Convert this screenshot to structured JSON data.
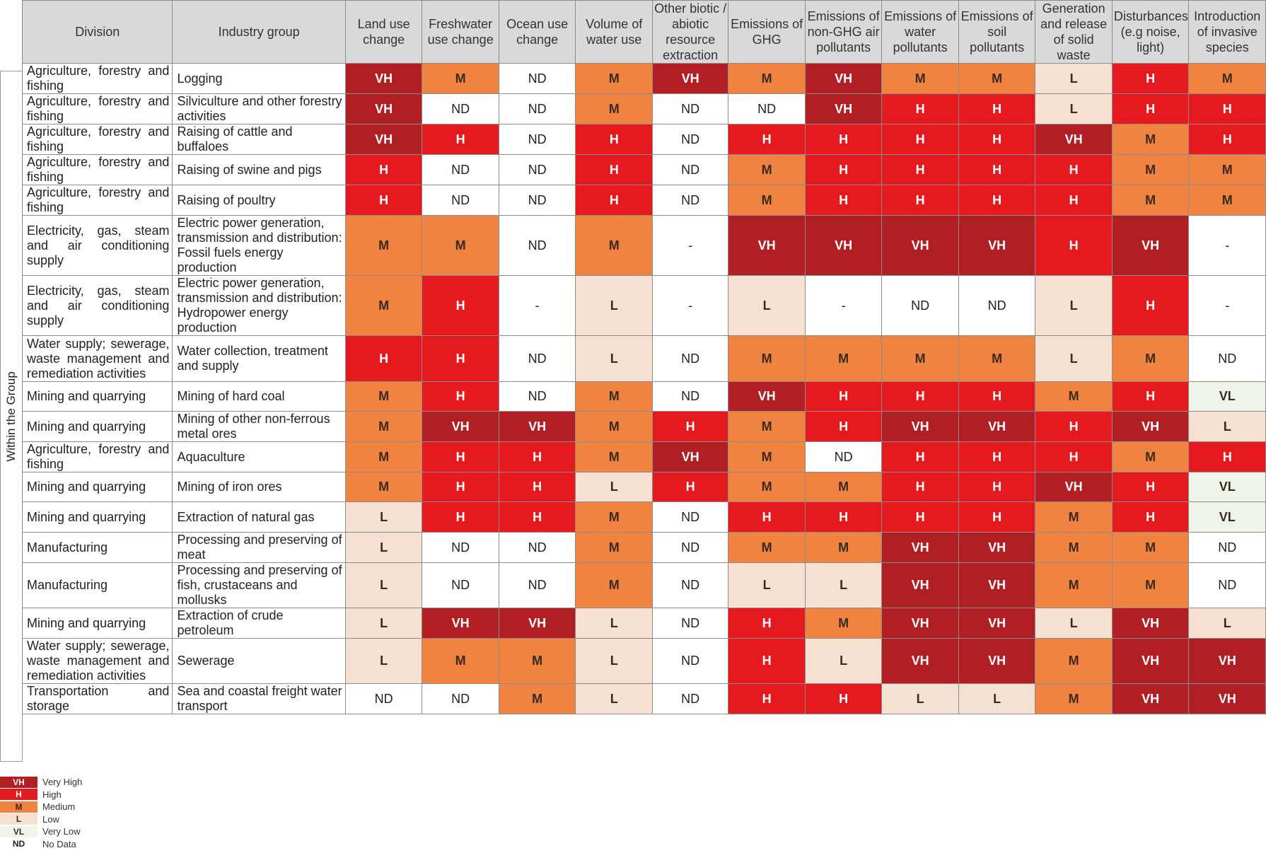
{
  "side_label": "Within the Group",
  "chart_data": {
    "type": "heatmap",
    "columns": [
      "Division",
      "Industry group",
      "Land use change",
      "Freshwater use change",
      "Ocean use change",
      "Volume of water use",
      "Other biotic / abiotic resource extraction",
      "Emissions of GHG",
      "Emissions of non-GHG air pollutants",
      "Emissions of water pollutants",
      "Emissions of soil pollutants",
      "Generation and release of solid waste",
      "Disturbances (e.g noise, light)",
      "Introduction of invasive species"
    ],
    "rows": [
      {
        "division": "Agriculture, forestry and fishing",
        "industry": "Logging",
        "values": [
          "VH",
          "M",
          "ND",
          "M",
          "VH",
          "M",
          "VH",
          "M",
          "M",
          "L",
          "H",
          "M"
        ]
      },
      {
        "division": "Agriculture, forestry and fishing",
        "industry": "Silviculture and other forestry activities",
        "values": [
          "VH",
          "ND",
          "ND",
          "M",
          "ND",
          "ND",
          "VH",
          "H",
          "H",
          "L",
          "H",
          "H"
        ]
      },
      {
        "division": "Agriculture, forestry and fishing",
        "industry": "Raising of cattle and buffaloes",
        "values": [
          "VH",
          "H",
          "ND",
          "H",
          "ND",
          "H",
          "H",
          "H",
          "H",
          "VH",
          "M",
          "H"
        ]
      },
      {
        "division": "Agriculture, forestry and fishing",
        "industry": "Raising of swine and pigs",
        "values": [
          "H",
          "ND",
          "ND",
          "H",
          "ND",
          "M",
          "H",
          "H",
          "H",
          "H",
          "M",
          "M"
        ]
      },
      {
        "division": "Agriculture, forestry and fishing",
        "industry": "Raising of poultry",
        "values": [
          "H",
          "ND",
          "ND",
          "H",
          "ND",
          "M",
          "H",
          "H",
          "H",
          "H",
          "M",
          "M"
        ]
      },
      {
        "division": "Electricity, gas, steam and air conditioning supply",
        "industry": "Electric power generation, transmission and distribution: Fossil fuels energy production",
        "values": [
          "M",
          "M",
          "ND",
          "M",
          "-",
          "VH",
          "VH",
          "VH",
          "VH",
          "H",
          "VH",
          "-"
        ]
      },
      {
        "division": "Electricity, gas, steam and air conditioning supply",
        "industry": "Electric power generation, transmission and distribution: Hydropower energy production",
        "values": [
          "M",
          "H",
          "-",
          "L",
          "-",
          "L",
          "-",
          "ND",
          "ND",
          "L",
          "H",
          "-"
        ]
      },
      {
        "division": "Water supply; sewerage, waste management and remediation activities",
        "industry": "Water collection, treatment and supply",
        "values": [
          "H",
          "H",
          "ND",
          "L",
          "ND",
          "M",
          "M",
          "M",
          "M",
          "L",
          "M",
          "ND"
        ]
      },
      {
        "division": "Mining and quarrying",
        "industry": "Mining of hard coal",
        "values": [
          "M",
          "H",
          "ND",
          "M",
          "ND",
          "VH",
          "H",
          "H",
          "H",
          "M",
          "H",
          "VL"
        ]
      },
      {
        "division": "Mining and quarrying",
        "industry": "Mining of other non-ferrous metal ores",
        "values": [
          "M",
          "VH",
          "VH",
          "M",
          "H",
          "M",
          "H",
          "VH",
          "VH",
          "H",
          "VH",
          "L"
        ]
      },
      {
        "division": "Agriculture, forestry and fishing",
        "industry": "Aquaculture",
        "values": [
          "M",
          "H",
          "H",
          "M",
          "VH",
          "M",
          "ND",
          "H",
          "H",
          "H",
          "M",
          "H"
        ]
      },
      {
        "division": "Mining and quarrying",
        "industry": "Mining of iron ores",
        "values": [
          "M",
          "H",
          "H",
          "L",
          "H",
          "M",
          "M",
          "H",
          "H",
          "VH",
          "H",
          "VL"
        ]
      },
      {
        "division": "Mining and quarrying",
        "industry": "Extraction of natural gas",
        "values": [
          "L",
          "H",
          "H",
          "M",
          "ND",
          "H",
          "H",
          "H",
          "H",
          "M",
          "H",
          "VL"
        ]
      },
      {
        "division": "Manufacturing",
        "industry": "Processing and preserving of meat",
        "values": [
          "L",
          "ND",
          "ND",
          "M",
          "ND",
          "M",
          "M",
          "VH",
          "VH",
          "M",
          "M",
          "ND"
        ]
      },
      {
        "division": "Manufacturing",
        "industry": "Processing and preserving of fish, crustaceans and mollusks",
        "values": [
          "L",
          "ND",
          "ND",
          "M",
          "ND",
          "L",
          "L",
          "VH",
          "VH",
          "M",
          "M",
          "ND"
        ]
      },
      {
        "division": "Mining and quarrying",
        "industry": "Extraction of crude petroleum",
        "values": [
          "L",
          "VH",
          "VH",
          "L",
          "ND",
          "H",
          "M",
          "VH",
          "VH",
          "L",
          "VH",
          "L"
        ]
      },
      {
        "division": "Water supply; sewerage, waste management and remediation activities",
        "industry": "Sewerage",
        "values": [
          "L",
          "M",
          "M",
          "L",
          "ND",
          "H",
          "L",
          "VH",
          "VH",
          "M",
          "VH",
          "VH"
        ]
      },
      {
        "division": "Transportation and storage",
        "industry": "Sea and coastal freight water transport",
        "values": [
          "ND",
          "ND",
          "M",
          "L",
          "ND",
          "H",
          "H",
          "L",
          "L",
          "M",
          "VH",
          "VH"
        ]
      }
    ],
    "legend": [
      {
        "code": "VH",
        "label": "Very High"
      },
      {
        "code": "H",
        "label": "High"
      },
      {
        "code": "M",
        "label": "Medium"
      },
      {
        "code": "L",
        "label": "Low"
      },
      {
        "code": "VL",
        "label": "Very Low"
      },
      {
        "code": "ND",
        "label": "No Data"
      }
    ],
    "colors": {
      "VH": "#b11f24",
      "H": "#e5191e",
      "M": "#ef833f",
      "L": "#f6e0d1",
      "VL": "#eef4ea",
      "ND": "#ffffff",
      "-": "#ffffff"
    },
    "text_colors": {
      "VH": "#ffffff",
      "H": "#ffffff",
      "M": "#3a2a20",
      "L": "#3a2a20",
      "VL": "#3a2a20",
      "ND": "#222222",
      "-": "#222222"
    }
  }
}
